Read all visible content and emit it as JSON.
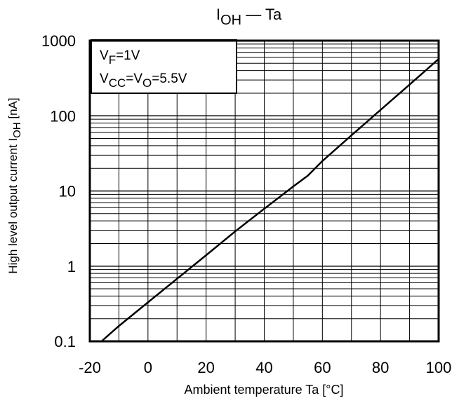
{
  "chart_data": {
    "type": "line",
    "title": {
      "main": "I",
      "sub": "OH",
      "rest": " — Ta"
    },
    "xlabel": "Ambient temperature Ta [°C]",
    "ylabel": {
      "pre": "High level output current  I",
      "sub": "OH",
      "post": " [nA]"
    },
    "x_ticks": [
      -20,
      0,
      20,
      40,
      60,
      80,
      100
    ],
    "x_tick_labels": [
      "-20",
      "0",
      "20",
      "40",
      "60",
      "80",
      "100"
    ],
    "y_ticks": [
      0.1,
      1,
      10,
      100,
      1000
    ],
    "y_tick_labels": [
      "0.1",
      "1",
      "10",
      "100",
      "1000"
    ],
    "xlim": [
      -20,
      100
    ],
    "ylim": [
      0.1,
      1000
    ],
    "y_scale": "log",
    "grid": true,
    "legend": {
      "position": "top-left",
      "lines": [
        {
          "main": "V",
          "sub": "F",
          "rest": "=1V"
        },
        {
          "main": "V",
          "sub": "CC",
          "rest": "=V",
          "sub2": "O",
          "rest2": "=5.5V"
        }
      ]
    },
    "series": [
      {
        "x": [
          -16,
          -10,
          0,
          10,
          20,
          30,
          40,
          50,
          55,
          60,
          70,
          80,
          90,
          100
        ],
        "y": [
          0.1,
          0.16,
          0.33,
          0.68,
          1.4,
          2.9,
          5.8,
          11.5,
          16.0,
          25.0,
          55.0,
          120.0,
          260.0,
          570.0
        ]
      }
    ],
    "colors": {
      "line": "#000000",
      "grid": "#000000",
      "background": "#ffffff"
    }
  }
}
